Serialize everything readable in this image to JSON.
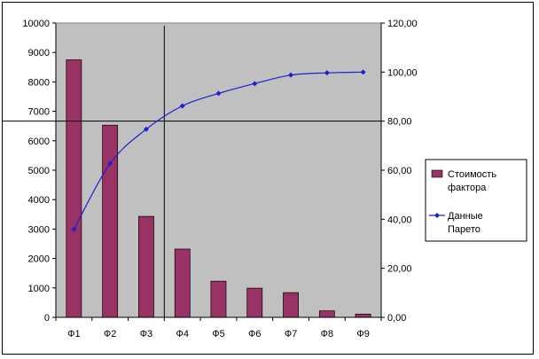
{
  "chart_data": {
    "type": "bar",
    "categories": [
      "Ф1",
      "Ф2",
      "Ф3",
      "Ф4",
      "Ф5",
      "Ф6",
      "Ф7",
      "Ф8",
      "Ф9"
    ],
    "series": [
      {
        "name": "Стоимость фактора",
        "type": "bar",
        "axis": "left",
        "color": "#993366",
        "values": [
          8750,
          6530,
          3430,
          2320,
          1230,
          990,
          840,
          220,
          110
        ]
      },
      {
        "name": "Данные Парето",
        "type": "line",
        "axis": "right",
        "color": "#1f1fcf",
        "marker": "diamond",
        "values": [
          35.9,
          62.7,
          76.7,
          86.2,
          91.3,
          95.3,
          98.8,
          99.7,
          100.0
        ]
      }
    ],
    "ylim_left": [
      0,
      10000
    ],
    "yticks_left": [
      "0",
      "1000",
      "2000",
      "3000",
      "4000",
      "5000",
      "6000",
      "7000",
      "8000",
      "9000",
      "10000"
    ],
    "ylim_right": [
      0,
      120
    ],
    "yticks_right": [
      "0,00",
      "20,00",
      "40,00",
      "60,00",
      "80,00",
      "100,00",
      "120,00"
    ],
    "reference_lines": {
      "horizontal_right_axis_value": 80,
      "vertical_after_category": "Ф3"
    },
    "legend": {
      "position": "right",
      "items": [
        {
          "line1": "Стоимость",
          "line2": "фактора",
          "kind": "bar",
          "color": "#993366"
        },
        {
          "line1": "Данные",
          "line2": "Парето",
          "kind": "line",
          "color": "#1f1fcf"
        }
      ]
    },
    "plot_background": "#c0c0c0",
    "grid": false
  }
}
